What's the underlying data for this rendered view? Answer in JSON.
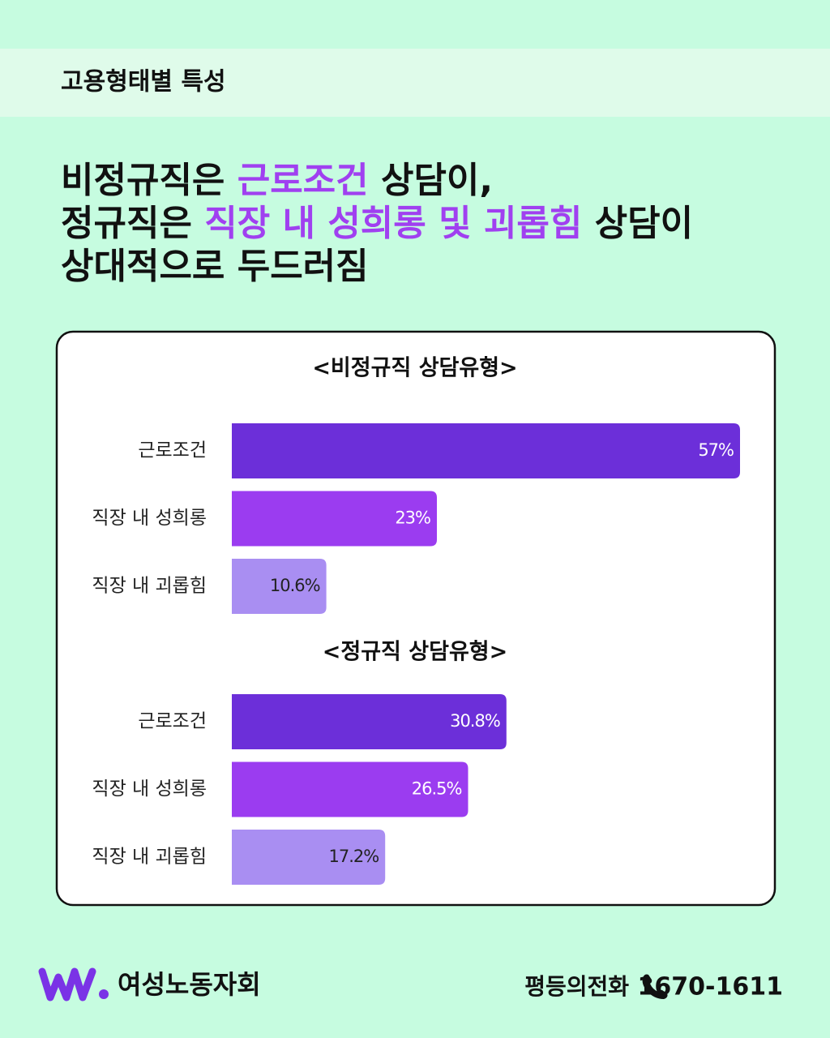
{
  "header": {
    "title": "고용형태별 특성"
  },
  "headline": [
    [
      {
        "text": "비정규직은 ",
        "color": "#111111"
      },
      {
        "text": "근로조건",
        "color": "#a040f0"
      },
      {
        "text": " 상담이,",
        "color": "#111111"
      }
    ],
    [
      {
        "text": "정규직은 ",
        "color": "#111111"
      },
      {
        "text": "직장 내 성희롱 및 괴롭힘",
        "color": "#a040f0"
      },
      {
        "text": " 상담이",
        "color": "#111111"
      }
    ],
    [
      {
        "text": "상대적으로 두드러짐",
        "color": "#111111"
      }
    ]
  ],
  "chart_data": [
    {
      "type": "bar",
      "orientation": "horizontal",
      "title": "<비정규직 상담유형>",
      "categories": [
        "근로조건",
        "직장 내 성희롱",
        "직장 내 괴롭힘"
      ],
      "values": [
        57,
        23,
        10.6
      ],
      "value_labels": [
        "57%",
        "23%",
        "10.6%"
      ],
      "colors": [
        "#6c2fd9",
        "#9b3cf0",
        "#a98ef2"
      ]
    },
    {
      "type": "bar",
      "orientation": "horizontal",
      "title": "<정규직 상담유형>",
      "categories": [
        "근로조건",
        "직장 내 성희롱",
        "직장 내 괴롭힘"
      ],
      "values": [
        30.8,
        26.5,
        17.2
      ],
      "value_labels": [
        "30.8%",
        "26.5%",
        "17.2%"
      ],
      "colors": [
        "#6c2fd9",
        "#9b3cf0",
        "#a98ef2"
      ]
    }
  ],
  "footer": {
    "organization": "여성노동자회",
    "hotline_label": "평등의전화",
    "phone": "1670-1611"
  }
}
